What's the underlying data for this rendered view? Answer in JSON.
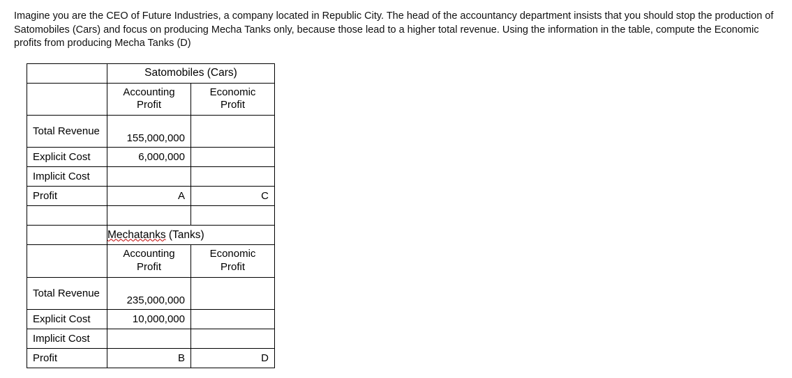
{
  "question": "Imagine you are the CEO of Future Industries, a company located in Republic City. The head of the accountancy department insists that you should stop the production of Satomobiles (Cars) and focus on producing Mecha Tanks only, because those lead to a higher total revenue. Using the information in the table, compute the Economic profits from producing Mecha Tanks (D)",
  "tables": {
    "satomobiles": {
      "title": "Satomobiles (Cars)",
      "col_acct": "Accounting Profit",
      "col_econ": "Economic Profit",
      "rows": {
        "total_revenue_label": "Total Revenue",
        "total_revenue_value": "155,000,000",
        "explicit_cost_label": "Explicit Cost",
        "explicit_cost_value": "6,000,000",
        "implicit_cost_label": "Implicit Cost",
        "implicit_cost_value": "",
        "profit_label": "Profit",
        "profit_acct": "A",
        "profit_econ": "C"
      }
    },
    "mechatanks": {
      "title_wavy": "Mechatanks",
      "title_rest": " (Tanks)",
      "col_acct": "Accounting Profit",
      "col_econ": "Economic Profit",
      "rows": {
        "total_revenue_label": "Total Revenue",
        "total_revenue_value": "235,000,000",
        "explicit_cost_label": "Explicit Cost",
        "explicit_cost_value": "10,000,000",
        "implicit_cost_label": "Implicit Cost",
        "implicit_cost_value": "",
        "profit_label": "Profit",
        "profit_acct": "B",
        "profit_econ": "D"
      }
    }
  }
}
